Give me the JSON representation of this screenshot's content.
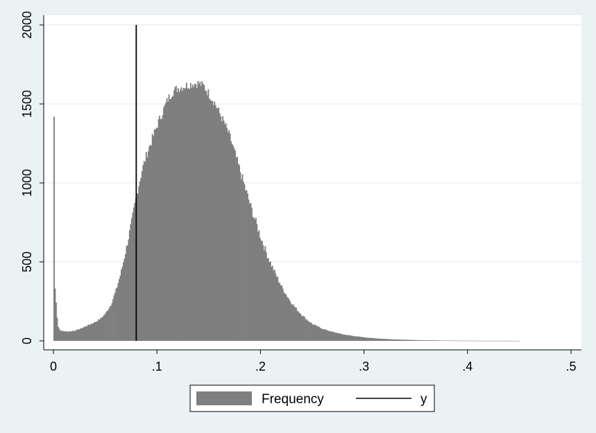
{
  "chart_data": {
    "type": "bar",
    "subtype": "histogram",
    "title": "",
    "xlabel": "",
    "ylabel": "",
    "xlim": [
      -0.01,
      0.51
    ],
    "ylim": [
      0,
      2000
    ],
    "x_ticks": [
      0,
      0.1,
      0.2,
      0.3,
      0.4,
      0.5
    ],
    "x_tick_labels": [
      "0",
      ".1",
      ".2",
      ".3",
      ".4",
      ".5"
    ],
    "y_ticks": [
      0,
      500,
      1000,
      1500,
      2000
    ],
    "y_tick_labels": [
      "0",
      "500",
      "1000",
      "1500",
      "2000"
    ],
    "grid": true,
    "legend_position": "bottom",
    "bar_color": "#7f7f7f",
    "bin_width": 0.001,
    "histogram_profile": [
      [
        0.0,
        1420
      ],
      [
        0.001,
        330
      ],
      [
        0.002,
        250
      ],
      [
        0.003,
        150
      ],
      [
        0.004,
        90
      ],
      [
        0.006,
        65
      ],
      [
        0.01,
        60
      ],
      [
        0.015,
        60
      ],
      [
        0.02,
        65
      ],
      [
        0.025,
        75
      ],
      [
        0.03,
        90
      ],
      [
        0.035,
        105
      ],
      [
        0.04,
        120
      ],
      [
        0.045,
        140
      ],
      [
        0.05,
        175
      ],
      [
        0.055,
        230
      ],
      [
        0.06,
        320
      ],
      [
        0.065,
        440
      ],
      [
        0.07,
        590
      ],
      [
        0.075,
        750
      ],
      [
        0.08,
        930
      ],
      [
        0.085,
        1080
      ],
      [
        0.09,
        1190
      ],
      [
        0.095,
        1280
      ],
      [
        0.1,
        1370
      ],
      [
        0.105,
        1450
      ],
      [
        0.11,
        1530
      ],
      [
        0.115,
        1580
      ],
      [
        0.12,
        1600
      ],
      [
        0.125,
        1610
      ],
      [
        0.13,
        1620
      ],
      [
        0.135,
        1630
      ],
      [
        0.14,
        1630
      ],
      [
        0.145,
        1610
      ],
      [
        0.15,
        1560
      ],
      [
        0.155,
        1510
      ],
      [
        0.16,
        1440
      ],
      [
        0.165,
        1370
      ],
      [
        0.17,
        1290
      ],
      [
        0.175,
        1180
      ],
      [
        0.18,
        1070
      ],
      [
        0.185,
        960
      ],
      [
        0.19,
        850
      ],
      [
        0.195,
        750
      ],
      [
        0.2,
        650
      ],
      [
        0.205,
        560
      ],
      [
        0.21,
        480
      ],
      [
        0.215,
        410
      ],
      [
        0.22,
        340
      ],
      [
        0.225,
        285
      ],
      [
        0.23,
        235
      ],
      [
        0.235,
        195
      ],
      [
        0.24,
        160
      ],
      [
        0.245,
        130
      ],
      [
        0.25,
        105
      ],
      [
        0.26,
        75
      ],
      [
        0.27,
        55
      ],
      [
        0.28,
        40
      ],
      [
        0.29,
        30
      ],
      [
        0.3,
        22
      ],
      [
        0.31,
        16
      ],
      [
        0.32,
        12
      ],
      [
        0.33,
        9
      ],
      [
        0.34,
        7
      ],
      [
        0.35,
        5
      ],
      [
        0.36,
        4
      ],
      [
        0.37,
        3
      ],
      [
        0.38,
        2
      ],
      [
        0.39,
        1.5
      ],
      [
        0.4,
        1
      ],
      [
        0.41,
        0.8
      ],
      [
        0.42,
        0.5
      ],
      [
        0.43,
        0.4
      ],
      [
        0.44,
        0.3
      ],
      [
        0.45,
        0
      ]
    ],
    "series": [
      {
        "name": "Frequency",
        "type": "histogram",
        "color": "#7f7f7f"
      },
      {
        "name": "y",
        "type": "line",
        "orientation": "vertical",
        "x": 0.08,
        "y_range": [
          0,
          2000
        ],
        "color": "#000000"
      }
    ],
    "legend": [
      "Frequency",
      "y"
    ]
  }
}
